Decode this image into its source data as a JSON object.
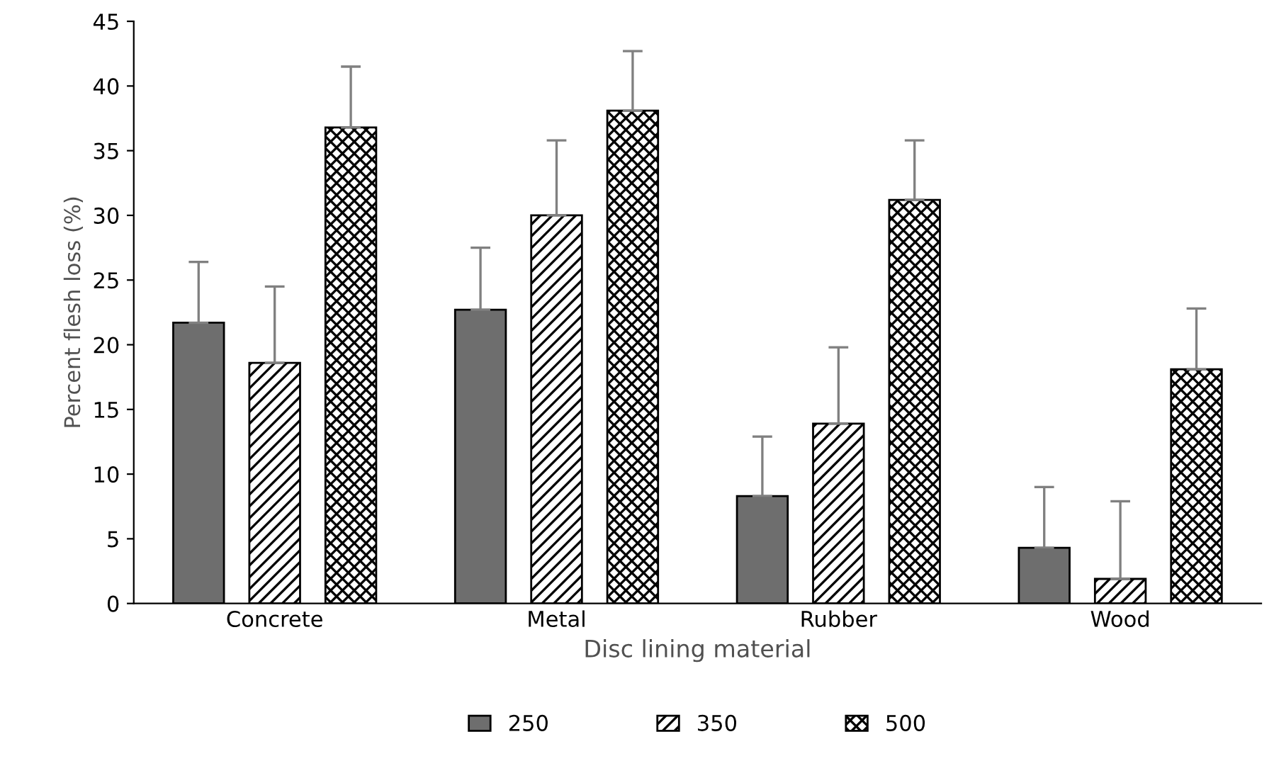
{
  "chart_data": {
    "type": "bar",
    "xlabel": "Disc lining material",
    "ylabel": "Percent flesh loss (%)",
    "categories": [
      "Concrete",
      "Metal",
      "Rubber",
      "Wood"
    ],
    "series": [
      {
        "name": "250",
        "color": "#6e6e6e",
        "values": [
          21.7,
          22.7,
          8.3,
          4.3
        ],
        "errors": [
          [
            21.7,
            26.4
          ],
          [
            22.7,
            27.5
          ],
          [
            8.3,
            12.9
          ],
          [
            4.3,
            9.0
          ]
        ]
      },
      {
        "name": "350",
        "color": "#000000",
        "values": [
          18.6,
          30.0,
          13.9,
          1.9
        ],
        "errors": [
          [
            18.6,
            24.5
          ],
          [
            30.0,
            35.8
          ],
          [
            13.9,
            19.8
          ],
          [
            1.9,
            7.9
          ]
        ]
      },
      {
        "name": "500",
        "color": "#000000",
        "values": [
          36.8,
          38.1,
          31.2,
          18.1
        ],
        "errors": [
          [
            36.8,
            41.5
          ],
          [
            38.1,
            42.7
          ],
          [
            31.2,
            35.8
          ],
          [
            18.1,
            22.8
          ]
        ]
      }
    ],
    "ylim": [
      0,
      45
    ],
    "yticks": [
      0,
      5,
      10,
      15,
      20,
      25,
      30,
      35,
      40,
      45
    ],
    "grid": false,
    "legend": "bottom"
  }
}
